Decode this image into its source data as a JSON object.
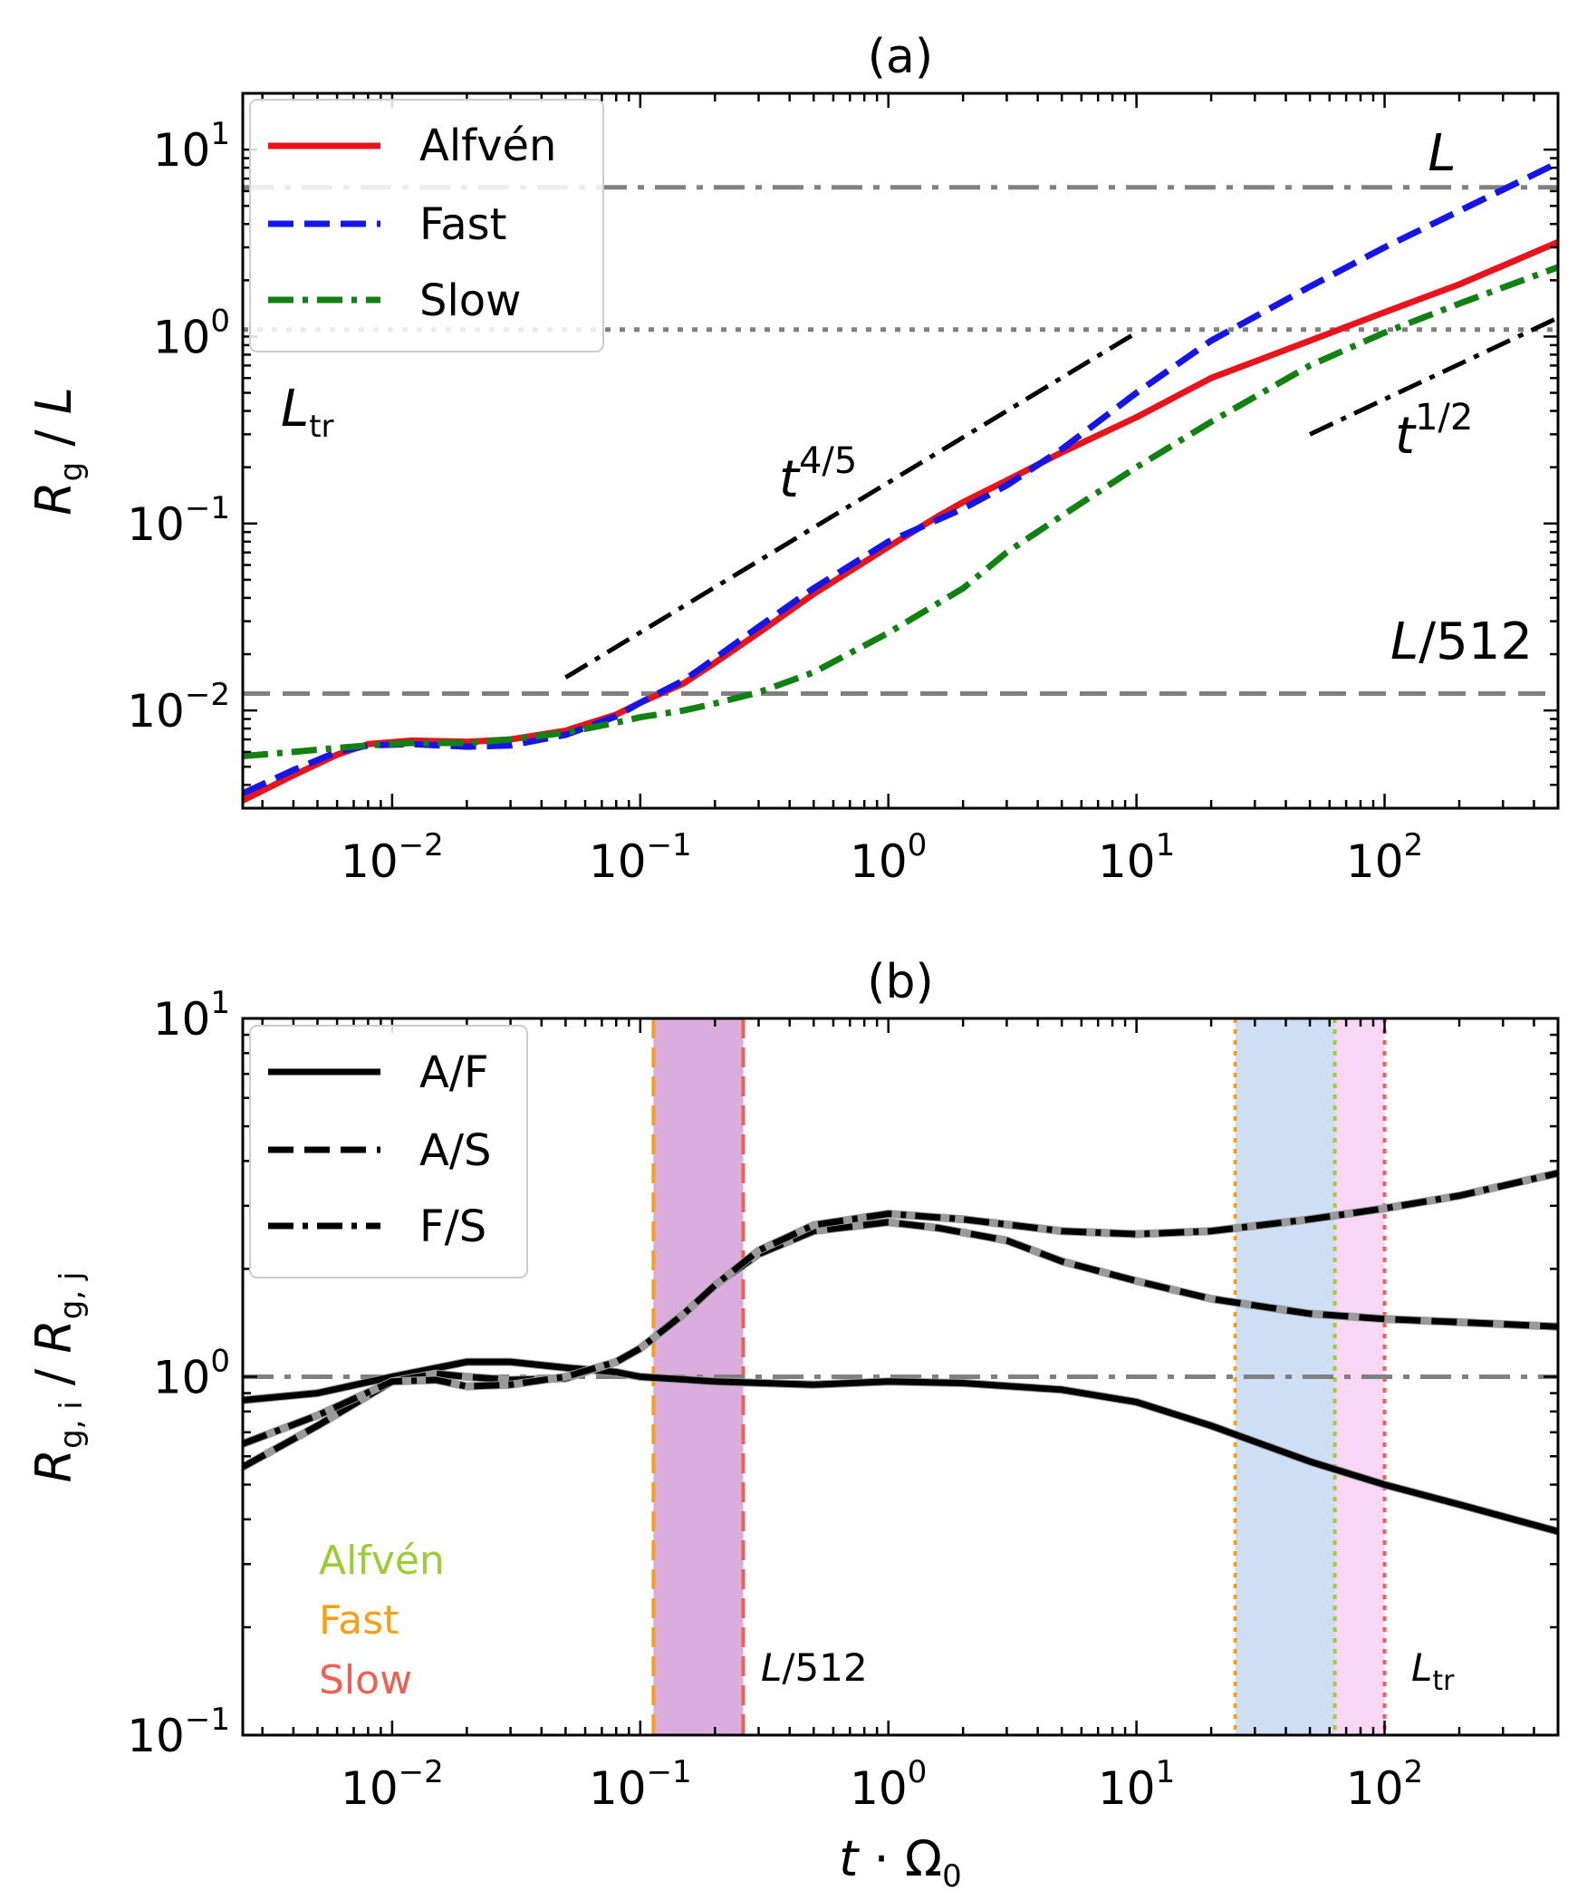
{
  "chart_data": [
    {
      "panel": "a",
      "type": "line",
      "title": "(a)",
      "xlabel": "t · Ω₀",
      "ylabel": "Rg / L",
      "xscale": "log",
      "yscale": "log",
      "xlim": [
        0.0025,
        500
      ],
      "ylim": [
        0.003,
        20
      ],
      "xticks": [
        {
          "value": 0.01,
          "base": "10",
          "exp": "−2"
        },
        {
          "value": 0.1,
          "base": "10",
          "exp": "−1"
        },
        {
          "value": 1,
          "base": "10",
          "exp": "0"
        },
        {
          "value": 10,
          "base": "10",
          "exp": "1"
        },
        {
          "value": 100,
          "base": "10",
          "exp": "2"
        }
      ],
      "yticks": [
        {
          "value": 0.01,
          "base": "10",
          "exp": "−2"
        },
        {
          "value": 0.1,
          "base": "10",
          "exp": "−1"
        },
        {
          "value": 1,
          "base": "10",
          "exp": "0"
        },
        {
          "value": 10,
          "base": "10",
          "exp": "1"
        }
      ],
      "legend": {
        "position": "upper-left"
      },
      "series": [
        {
          "name": "Alfvén",
          "color": "#e8141c",
          "dash": "solid",
          "x": [
            0.0025,
            0.004,
            0.006,
            0.008,
            0.012,
            0.02,
            0.03,
            0.05,
            0.08,
            0.1,
            0.15,
            0.2,
            0.3,
            0.5,
            1,
            1.6,
            2,
            3,
            5,
            10,
            20,
            50,
            100,
            200,
            500
          ],
          "y": [
            0.0033,
            0.0045,
            0.0058,
            0.0066,
            0.0069,
            0.0068,
            0.007,
            0.0078,
            0.0095,
            0.011,
            0.014,
            0.018,
            0.026,
            0.042,
            0.075,
            0.11,
            0.13,
            0.17,
            0.24,
            0.37,
            0.6,
            0.95,
            1.35,
            1.9,
            3.2
          ]
        },
        {
          "name": "Fast",
          "color": "#1515e8",
          "dash": "dashed",
          "x": [
            0.0025,
            0.004,
            0.006,
            0.008,
            0.012,
            0.02,
            0.03,
            0.05,
            0.08,
            0.1,
            0.15,
            0.2,
            0.3,
            0.5,
            1,
            2,
            3,
            5,
            10,
            20,
            50,
            100,
            200,
            500
          ],
          "y": [
            0.0036,
            0.0048,
            0.006,
            0.0065,
            0.0066,
            0.0064,
            0.0065,
            0.0074,
            0.0093,
            0.011,
            0.0145,
            0.019,
            0.028,
            0.045,
            0.08,
            0.12,
            0.16,
            0.25,
            0.5,
            0.95,
            1.85,
            3.0,
            4.7,
            8.5
          ]
        },
        {
          "name": "Slow",
          "color": "#118211",
          "dash": "dashdot",
          "x": [
            0.0025,
            0.004,
            0.006,
            0.008,
            0.012,
            0.02,
            0.03,
            0.05,
            0.08,
            0.1,
            0.15,
            0.2,
            0.3,
            0.5,
            1,
            2,
            3,
            5,
            10,
            20,
            50,
            100,
            200,
            500
          ],
          "y": [
            0.0057,
            0.006,
            0.0063,
            0.0065,
            0.0067,
            0.0067,
            0.007,
            0.0076,
            0.0086,
            0.0092,
            0.01,
            0.0109,
            0.0125,
            0.016,
            0.026,
            0.045,
            0.07,
            0.11,
            0.2,
            0.35,
            0.7,
            1.05,
            1.5,
            2.35
          ]
        }
      ],
      "reference_lines": [
        {
          "name": "L",
          "y": 6.28,
          "style": "dashdot",
          "color": "#808080",
          "label": "L"
        },
        {
          "name": "Ltr",
          "y": 1.09,
          "style": "dotted",
          "color": "#808080",
          "label_main": "L",
          "label_sub": "tr"
        },
        {
          "name": "L/512",
          "y": 0.0123,
          "style": "dashed",
          "color": "#808080",
          "label": "L/512"
        }
      ],
      "slope_guides": [
        {
          "label_base": "t",
          "label_exp": "4/5",
          "x": [
            0.05,
            10
          ],
          "y": [
            0.015,
            1.05
          ]
        },
        {
          "label_base": "t",
          "label_exp": "1/2",
          "x": [
            50,
            500
          ],
          "y": [
            0.3,
            1.26
          ]
        }
      ]
    },
    {
      "panel": "b",
      "type": "line",
      "title": "(b)",
      "xlabel": "t · Ω₀",
      "ylabel": "Rg,i / Rg,j",
      "xscale": "log",
      "yscale": "log",
      "xlim": [
        0.0025,
        500
      ],
      "ylim": [
        0.1,
        10
      ],
      "xticks": [
        {
          "value": 0.01,
          "base": "10",
          "exp": "−2"
        },
        {
          "value": 0.1,
          "base": "10",
          "exp": "−1"
        },
        {
          "value": 1,
          "base": "10",
          "exp": "0"
        },
        {
          "value": 10,
          "base": "10",
          "exp": "1"
        },
        {
          "value": 100,
          "base": "10",
          "exp": "2"
        }
      ],
      "yticks": [
        {
          "value": 0.1,
          "base": "10",
          "exp": "−1"
        },
        {
          "value": 1,
          "base": "10",
          "exp": "0"
        },
        {
          "value": 10,
          "base": "10",
          "exp": "1"
        }
      ],
      "legend": {
        "position": "upper-left"
      },
      "series": [
        {
          "name": "A/F",
          "color": "#000000",
          "dash": "solid",
          "x": [
            0.0025,
            0.005,
            0.01,
            0.02,
            0.03,
            0.05,
            0.08,
            0.1,
            0.2,
            0.5,
            1,
            2,
            5,
            10,
            20,
            50,
            100,
            200,
            500
          ],
          "y": [
            0.86,
            0.9,
            1.0,
            1.1,
            1.1,
            1.06,
            1.03,
            1.0,
            0.97,
            0.95,
            0.97,
            0.96,
            0.92,
            0.85,
            0.73,
            0.58,
            0.5,
            0.44,
            0.37
          ]
        },
        {
          "name": "A/S",
          "color": "#000000",
          "dash": "dashed",
          "x": [
            0.0025,
            0.005,
            0.01,
            0.015,
            0.02,
            0.03,
            0.05,
            0.08,
            0.1,
            0.15,
            0.2,
            0.3,
            0.5,
            1,
            1.6,
            3,
            5,
            10,
            20,
            50,
            100,
            200,
            500
          ],
          "y": [
            0.56,
            0.73,
            0.97,
            1.02,
            1.0,
            0.98,
            0.99,
            1.1,
            1.2,
            1.5,
            1.8,
            2.2,
            2.55,
            2.7,
            2.6,
            2.4,
            2.1,
            1.85,
            1.65,
            1.5,
            1.45,
            1.42,
            1.38
          ]
        },
        {
          "name": "F/S",
          "color": "#000000",
          "dash": "dashdot",
          "x": [
            0.0025,
            0.005,
            0.01,
            0.015,
            0.02,
            0.03,
            0.05,
            0.08,
            0.1,
            0.15,
            0.2,
            0.3,
            0.5,
            1,
            2,
            5,
            10,
            20,
            50,
            100,
            200,
            500
          ],
          "y": [
            0.65,
            0.78,
            0.97,
            0.98,
            0.94,
            0.95,
            1.0,
            1.1,
            1.2,
            1.5,
            1.8,
            2.25,
            2.65,
            2.85,
            2.75,
            2.55,
            2.5,
            2.55,
            2.75,
            2.95,
            3.2,
            3.7
          ]
        }
      ],
      "reference_lines": [
        {
          "name": "unity",
          "y": 1,
          "style": "dashdot",
          "color": "#808080"
        }
      ],
      "shaded_bands": [
        {
          "name": "L/512 band",
          "x": [
            0.113,
            0.26
          ],
          "color": "#b04ab8",
          "opacity": 0.45
        },
        {
          "name": "Ltr band fast-alfven",
          "x": [
            25,
            63
          ],
          "color": "#9ec0ec",
          "opacity": 0.5
        },
        {
          "name": "Ltr band alfven-slow",
          "x": [
            63,
            100
          ],
          "color": "#f2b4ee",
          "opacity": 0.55
        }
      ],
      "vertical_markers": [
        {
          "mode": "Fast",
          "x": 0.113,
          "color": "#f5a016",
          "style": "dashed"
        },
        {
          "mode": "Slow",
          "x": 0.26,
          "color": "#f06050",
          "style": "dashed"
        },
        {
          "mode": "Fast",
          "x": 25,
          "color": "#f5a016",
          "style": "dotted"
        },
        {
          "mode": "Alfvén",
          "x": 63,
          "color": "#9acd32",
          "style": "dotted"
        },
        {
          "mode": "Slow",
          "x": 100,
          "color": "#f06050",
          "style": "dotted"
        }
      ],
      "annotations": [
        {
          "label": "L/512"
        },
        {
          "label_main": "L",
          "label_sub": "tr"
        }
      ],
      "mode_key": [
        {
          "label": "Alfvén",
          "color": "#9acd32"
        },
        {
          "label": "Fast",
          "color": "#f5a016"
        },
        {
          "label": "Slow",
          "color": "#f06050"
        }
      ]
    }
  ]
}
